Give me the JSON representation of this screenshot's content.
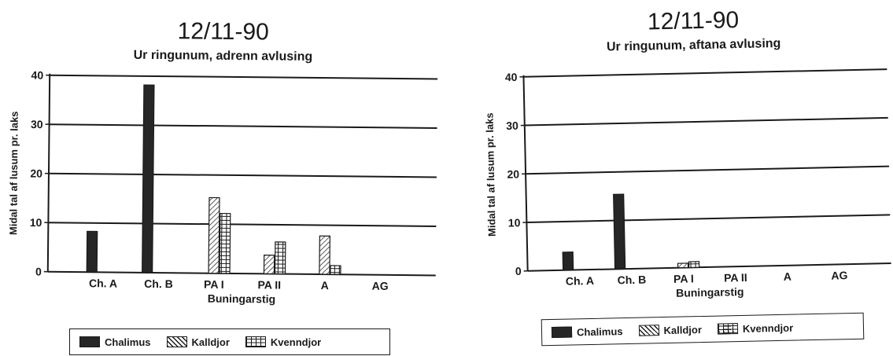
{
  "chart_data": [
    {
      "type": "bar",
      "title": "12/11-90",
      "subtitle": "Ur ringunum, adrenn avlusing",
      "xlabel": "Buningarstig",
      "ylabel": "Midal tal af lusum pr. laks",
      "categories": [
        "Ch. A",
        "Ch. B",
        "PA I",
        "PA II",
        "A",
        "AG"
      ],
      "ylim": [
        0,
        40
      ],
      "yticks": [
        "0",
        "10",
        "20",
        "30",
        "40"
      ],
      "grid": true,
      "legend_position": "bottom",
      "series": [
        {
          "name": "Chalimus",
          "values": [
            8.3,
            38.2,
            0,
            0,
            0,
            0
          ]
        },
        {
          "name": "Kalldjor",
          "values": [
            0,
            0,
            15.4,
            3.8,
            7.8,
            0
          ]
        },
        {
          "name": "Kvenndjor",
          "values": [
            0,
            0,
            12.2,
            6.5,
            1.8,
            0
          ]
        }
      ]
    },
    {
      "type": "bar",
      "title": "12/11-90",
      "subtitle": "Ur ringunum, aftana avlusing",
      "xlabel": "Buningarstig",
      "ylabel": "Midal tal af lusum pr. laks",
      "categories": [
        "Ch. A",
        "Ch. B",
        "PA I",
        "PA II",
        "A",
        "AG"
      ],
      "ylim": [
        0,
        40
      ],
      "yticks": [
        "0",
        "10",
        "20",
        "30",
        "40"
      ],
      "grid": true,
      "legend_position": "bottom",
      "series": [
        {
          "name": "Chalimus",
          "values": [
            3.7,
            15.4,
            0,
            0,
            0,
            0
          ]
        },
        {
          "name": "Kalldjor",
          "values": [
            0,
            0,
            0.9,
            0,
            0,
            0
          ]
        },
        {
          "name": "Kvenndjor",
          "values": [
            0,
            0,
            1.2,
            0,
            0,
            0
          ]
        }
      ]
    }
  ],
  "legend": {
    "items": [
      {
        "label": "Chalimus",
        "pattern": "solid"
      },
      {
        "label": "Kalldjor",
        "pattern": "hatch"
      },
      {
        "label": "Kvenndjor",
        "pattern": "grid"
      }
    ]
  },
  "colors": {
    "ink": "#1a1a1a",
    "solid_fill": "#262626",
    "paper": "#ffffff"
  }
}
